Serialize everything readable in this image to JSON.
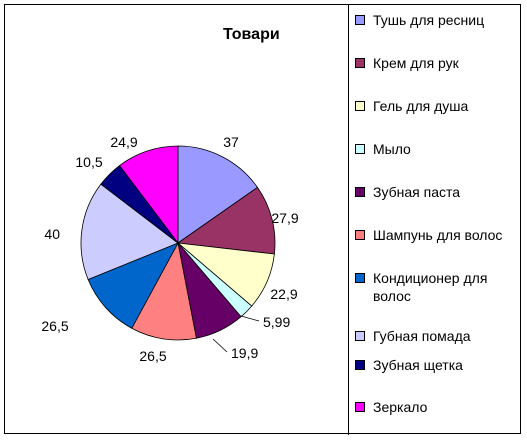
{
  "chart_data": {
    "type": "pie",
    "title": "Товари",
    "categories": [
      "Тушь для ресниц",
      "Крем для рук",
      "Гель для душа",
      "Мыло",
      "Зубная паста",
      "Шампунь для волос",
      "Кондиционер для волос",
      "Губная помада",
      "Зубная щетка",
      "Зеркало"
    ],
    "values": [
      37,
      27.9,
      22.9,
      5.99,
      19.9,
      26.5,
      26.5,
      40,
      10.5,
      24.9
    ],
    "value_labels": [
      "37",
      "27,9",
      "22,9",
      "5,99",
      "19,9",
      "26,5",
      "26,5",
      "40",
      "10,5",
      "24,9"
    ],
    "colors": [
      "#9999FF",
      "#993366",
      "#FFFFCC",
      "#CCFFFF",
      "#660066",
      "#FF8080",
      "#0066CC",
      "#CCCCFF",
      "#000080",
      "#FF00FF"
    ],
    "legend_position": "right"
  }
}
